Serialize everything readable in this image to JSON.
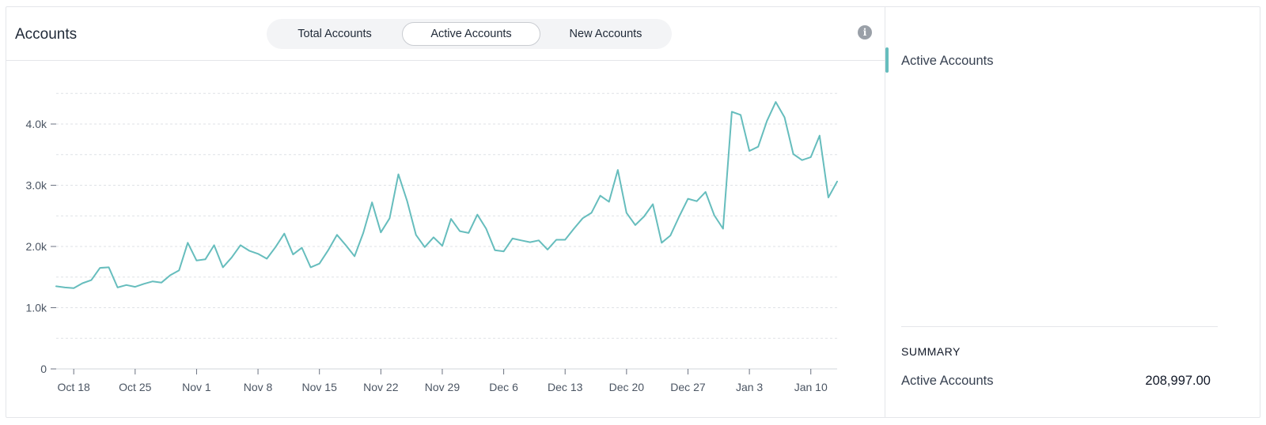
{
  "header": {
    "title": "Accounts",
    "tabs": [
      {
        "label": "Total Accounts",
        "active": false
      },
      {
        "label": "Active Accounts",
        "active": true
      },
      {
        "label": "New Accounts",
        "active": false
      }
    ],
    "info_icon": "info-icon"
  },
  "legend": {
    "label": "Active Accounts",
    "color": "#66bdbd"
  },
  "summary": {
    "title": "SUMMARY",
    "label": "Active Accounts",
    "value": "208,997.00"
  },
  "chart_data": {
    "type": "line",
    "title": "",
    "xlabel": "",
    "ylabel": "",
    "ylim": [
      0,
      4500
    ],
    "y_ticks": [
      0,
      1000,
      2000,
      3000,
      4000
    ],
    "y_tick_labels": [
      "0",
      "1.0k",
      "2.0k",
      "3.0k",
      "4.0k"
    ],
    "x_ticks": [
      "2021-10-18",
      "2021-10-25",
      "2021-11-01",
      "2021-11-08",
      "2021-11-15",
      "2021-11-22",
      "2021-11-29",
      "2021-12-06",
      "2021-12-13",
      "2021-12-20",
      "2021-12-27",
      "2022-01-03",
      "2022-01-10"
    ],
    "x_tick_labels": [
      "Oct 18",
      "Oct 25",
      "Nov 1",
      "Nov 8",
      "Nov 15",
      "Nov 22",
      "Nov 29",
      "Dec 6",
      "Dec 13",
      "Dec 20",
      "Dec 27",
      "Jan 3",
      "Jan 10"
    ],
    "grid": true,
    "color": "#66bdbd",
    "series": [
      {
        "x": [
          "2021-10-16",
          "2021-10-17",
          "2021-10-18",
          "2021-10-19",
          "2021-10-20",
          "2021-10-21",
          "2021-10-22",
          "2021-10-23",
          "2021-10-24",
          "2021-10-25",
          "2021-10-26",
          "2021-10-27",
          "2021-10-28",
          "2021-10-29",
          "2021-10-30",
          "2021-10-31",
          "2021-11-01",
          "2021-11-02",
          "2021-11-03",
          "2021-11-04",
          "2021-11-05",
          "2021-11-06",
          "2021-11-07",
          "2021-11-08",
          "2021-11-09",
          "2021-11-10",
          "2021-11-11",
          "2021-11-12",
          "2021-11-13",
          "2021-11-14",
          "2021-11-15",
          "2021-11-16",
          "2021-11-17",
          "2021-11-18",
          "2021-11-19",
          "2021-11-20",
          "2021-11-21",
          "2021-11-22",
          "2021-11-23",
          "2021-11-24",
          "2021-11-25",
          "2021-11-26",
          "2021-11-27",
          "2021-11-28",
          "2021-11-29",
          "2021-11-30",
          "2021-12-01",
          "2021-12-02",
          "2021-12-03",
          "2021-12-04",
          "2021-12-05",
          "2021-12-06",
          "2021-12-07",
          "2021-12-08",
          "2021-12-09",
          "2021-12-10",
          "2021-12-11",
          "2021-12-12",
          "2021-12-13",
          "2021-12-14",
          "2021-12-15",
          "2021-12-16",
          "2021-12-17",
          "2021-12-18",
          "2021-12-19",
          "2021-12-20",
          "2021-12-21",
          "2021-12-22",
          "2021-12-23",
          "2021-12-24",
          "2021-12-25",
          "2021-12-26",
          "2021-12-27",
          "2021-12-28",
          "2021-12-29",
          "2021-12-30",
          "2021-12-31",
          "2022-01-01",
          "2022-01-02",
          "2022-01-03",
          "2022-01-04",
          "2022-01-05",
          "2022-01-06",
          "2022-01-07",
          "2022-01-08",
          "2022-01-09",
          "2022-01-10",
          "2022-01-11",
          "2022-01-12",
          "2022-01-13"
        ],
        "values": [
          1350,
          1330,
          1320,
          1400,
          1450,
          1650,
          1660,
          1330,
          1370,
          1340,
          1390,
          1430,
          1410,
          1530,
          1610,
          2060,
          1770,
          1790,
          2020,
          1660,
          1820,
          2020,
          1930,
          1880,
          1800,
          1990,
          2210,
          1870,
          1980,
          1660,
          1720,
          1940,
          2190,
          2020,
          1840,
          2220,
          2720,
          2230,
          2460,
          3180,
          2740,
          2190,
          1990,
          2150,
          2010,
          2450,
          2250,
          2220,
          2520,
          2290,
          1940,
          1920,
          2130,
          2100,
          2070,
          2100,
          1950,
          2110,
          2110,
          2290,
          2460,
          2550,
          2830,
          2730,
          3250,
          2550,
          2350,
          2490,
          2690,
          2060,
          2180,
          2490,
          2780,
          2740,
          2890,
          2510,
          2290,
          4200,
          4150,
          3560,
          3630,
          4050,
          4360,
          4110,
          3510,
          3410,
          3460,
          3810,
          2800,
          3060
        ]
      }
    ]
  }
}
